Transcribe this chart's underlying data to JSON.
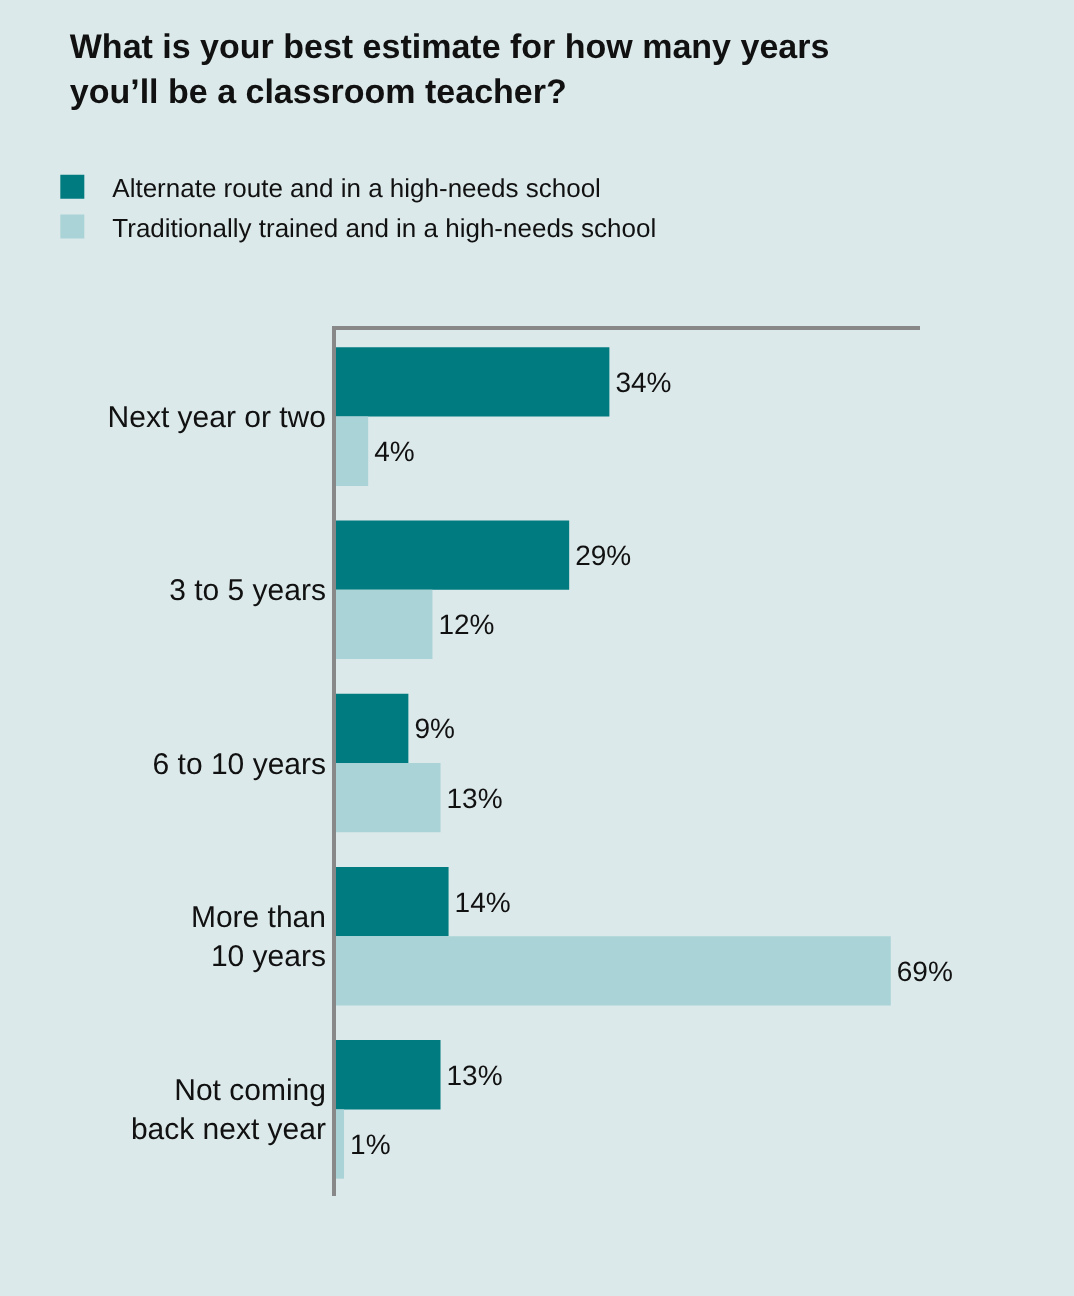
{
  "chart_data": {
    "type": "bar",
    "orientation": "horizontal",
    "title": "What is your best estimate for how many years\nyou’ll be a classroom teacher?",
    "categories": [
      "Next year or two",
      "3 to 5 years",
      "6 to 10 years",
      "More than\n10 years",
      "Not coming\nback next year"
    ],
    "series": [
      {
        "name": "Alternate route and in a high-needs school",
        "color": "#007b7f",
        "values": [
          34,
          29,
          9,
          14,
          13
        ],
        "value_labels": [
          "34%",
          "29%",
          "9%",
          "14%",
          "13%"
        ]
      },
      {
        "name": "Traditionally trained and in a high-needs school",
        "color": "#aad3d7",
        "values": [
          4,
          12,
          13,
          69,
          1
        ],
        "value_labels": [
          "4%",
          "12%",
          "13%",
          "69%",
          "1%"
        ]
      }
    ],
    "legend": "top left",
    "grid": false
  }
}
